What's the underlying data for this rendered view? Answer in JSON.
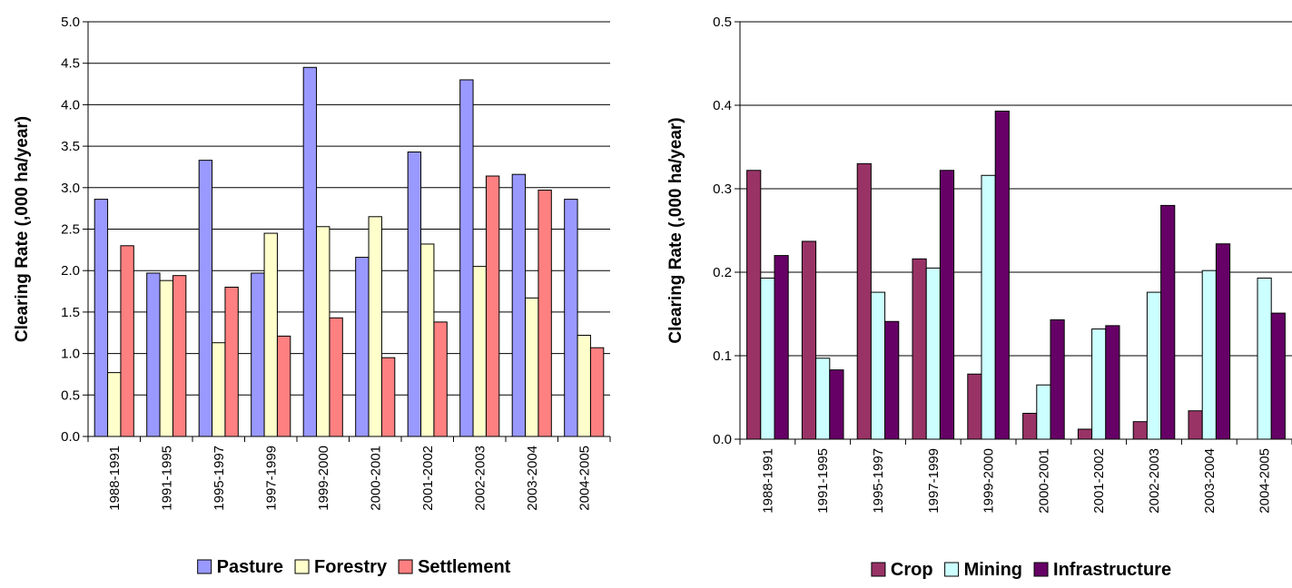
{
  "chart_data": [
    {
      "type": "bar",
      "ylabel": "Clearing Rate (,000 ha/year)",
      "ylim": [
        0,
        5
      ],
      "ytick_step": 0.5,
      "ytick_labels": [
        "0.0",
        "0.5",
        "1.0",
        "1.5",
        "2.0",
        "2.5",
        "3.0",
        "3.5",
        "4.0",
        "4.5",
        "5.0"
      ],
      "grid": true,
      "legend": "bottom",
      "categories": [
        "1988-1991",
        "1991-1995",
        "1995-1997",
        "1997-1999",
        "1999-2000",
        "2000-2001",
        "2001-2002",
        "2002-2003",
        "2003-2004",
        "2004-2005"
      ],
      "series": [
        {
          "name": "Pasture",
          "color": "#9999ff",
          "values": [
            2.86,
            1.97,
            3.33,
            1.97,
            4.45,
            2.16,
            3.43,
            4.3,
            3.16,
            2.86
          ]
        },
        {
          "name": "Forestry",
          "color": "#ffffcc",
          "values": [
            0.77,
            1.88,
            1.13,
            2.45,
            2.53,
            2.65,
            2.32,
            2.05,
            1.67,
            1.22
          ]
        },
        {
          "name": "Settlement",
          "color": "#ff8080",
          "values": [
            2.3,
            1.94,
            1.8,
            1.21,
            1.43,
            0.95,
            1.38,
            3.14,
            2.97,
            1.07
          ]
        }
      ]
    },
    {
      "type": "bar",
      "ylabel": "Clearing Rate (,000 ha/year)",
      "ylim": [
        0,
        0.5
      ],
      "ytick_step": 0.1,
      "ytick_labels": [
        "0.0",
        "0.1",
        "0.2",
        "0.3",
        "0.4",
        "0.5"
      ],
      "grid": true,
      "legend": "bottom",
      "categories": [
        "1988-1991",
        "1991-1995",
        "1995-1997",
        "1997-1999",
        "1999-2000",
        "2000-2001",
        "2001-2002",
        "2002-2003",
        "2003-2004",
        "2004-2005"
      ],
      "series": [
        {
          "name": "Crop",
          "color": "#993366",
          "values": [
            0.322,
            0.237,
            0.33,
            0.216,
            0.078,
            0.031,
            0.012,
            0.021,
            0.034,
            0.0
          ]
        },
        {
          "name": "Mining",
          "color": "#ccffff",
          "values": [
            0.193,
            0.097,
            0.176,
            0.205,
            0.316,
            0.065,
            0.132,
            0.176,
            0.202,
            0.193
          ]
        },
        {
          "name": "Infrastructure",
          "color": "#660066",
          "values": [
            0.22,
            0.083,
            0.141,
            0.322,
            0.393,
            0.143,
            0.136,
            0.28,
            0.234,
            0.151
          ]
        }
      ]
    }
  ]
}
